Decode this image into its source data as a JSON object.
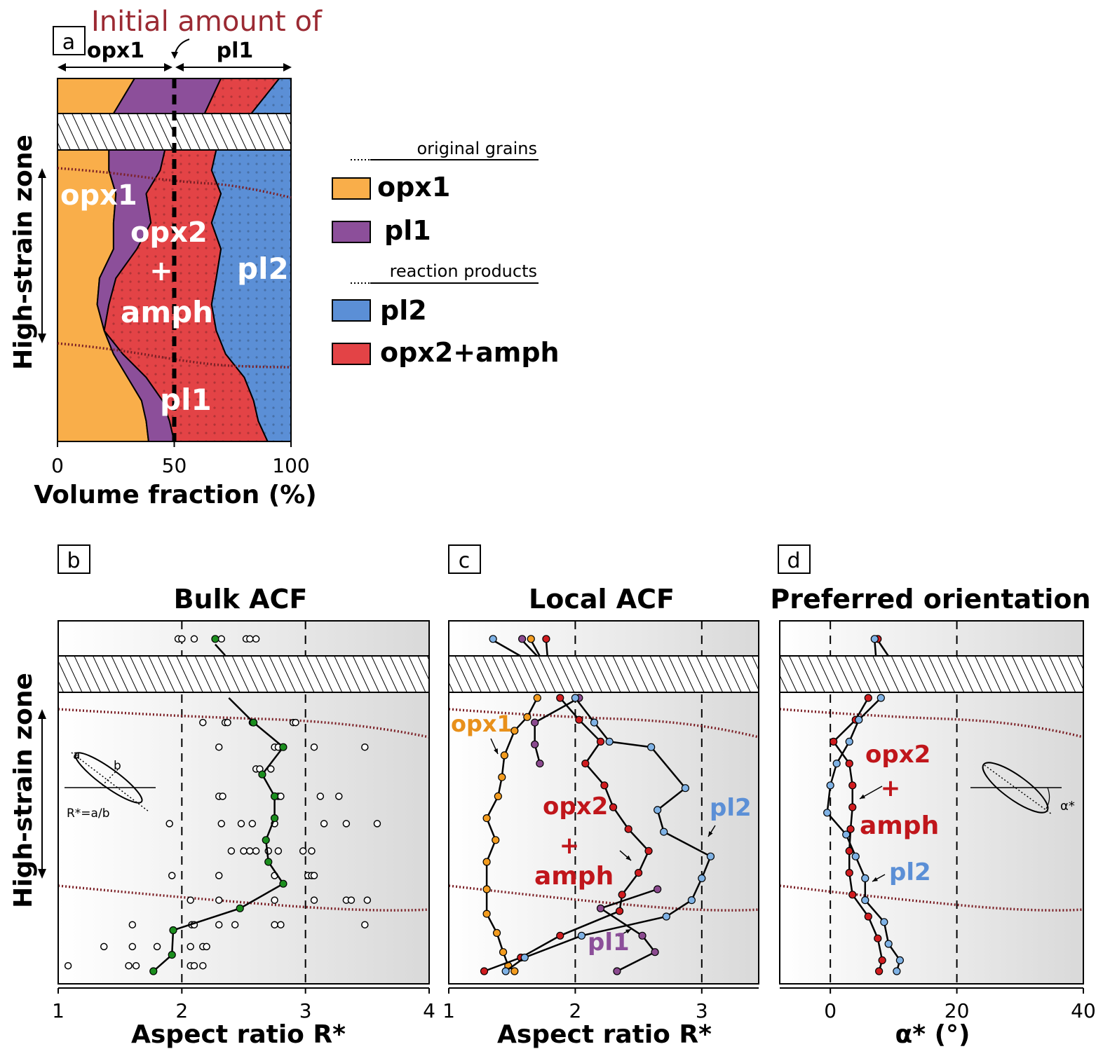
{
  "chart_data": [
    {
      "panel": "a",
      "type": "area",
      "title": "Initial amount of",
      "top_labels": [
        "opx1",
        "pl1"
      ],
      "xlabel": "Volume fraction (%)",
      "ylabel": "High-strain zone",
      "xlim": [
        0,
        100
      ],
      "xticks": [
        "0",
        "50",
        "100"
      ],
      "initial_marker_x": 50,
      "area_labels": [
        "opx1",
        "opx2",
        "+",
        "amph",
        "pl2",
        "pl1"
      ],
      "depth": [
        0.0,
        0.07,
        0.15,
        0.25,
        0.34,
        0.44,
        0.53,
        0.62,
        0.7,
        0.78,
        0.86,
        0.93,
        1.0
      ],
      "boundaries": [
        {
          "name": "opx1|pl1",
          "values": [
            22,
            22,
            25,
            24,
            24,
            18,
            17,
            20,
            24,
            30,
            36,
            38,
            39
          ]
        },
        {
          "name": "pl1|opx2+amph",
          "values": [
            46,
            44,
            38,
            40,
            34,
            25,
            22,
            20,
            28,
            38,
            45,
            48,
            50
          ]
        },
        {
          "name": "opx2+amph|pl2",
          "values": [
            68,
            66,
            70,
            66,
            70,
            68,
            66,
            68,
            72,
            80,
            84,
            86,
            90
          ]
        }
      ],
      "above_break": {
        "boundaries": [
          {
            "name": "opx1|pl1",
            "values": [
              33,
              24
            ]
          },
          {
            "name": "pl1|opx2+amph",
            "values": [
              70,
              63
            ]
          },
          {
            "name": "opx2+amph|pl2",
            "values": [
              95,
              83
            ]
          }
        ]
      }
    },
    {
      "panel": "b",
      "type": "scatter",
      "title": "Bulk ACF",
      "xlabel": "Aspect ratio R*",
      "ylabel": "High-strain zone",
      "xlim": [
        1,
        4
      ],
      "xticks": [
        "1",
        "2",
        "3",
        "4"
      ],
      "inset_labels": [
        "a",
        "b",
        "R*=a/b"
      ],
      "top_scatter": [
        1.97,
        2.0,
        2.1,
        2.32,
        2.52,
        2.55,
        2.6
      ],
      "top_mean": [
        [
          2.27,
          0.5
        ],
        [
          2.35,
          1.0
        ]
      ],
      "mean_depth": [
        0.0,
        0.09,
        0.18,
        0.28,
        0.36,
        0.44,
        0.52,
        0.6,
        0.68,
        0.77,
        0.85,
        0.94,
        1.0
      ],
      "mean_values": [
        2.38,
        2.58,
        2.82,
        2.65,
        2.75,
        2.75,
        2.68,
        2.7,
        2.82,
        2.47,
        1.93,
        1.92,
        1.77
      ],
      "scatter_rows": [
        {
          "d": 0.09,
          "x": [
            2.17,
            2.35,
            2.37,
            2.57,
            2.9,
            2.92
          ]
        },
        {
          "d": 0.18,
          "x": [
            2.3,
            2.75,
            2.78,
            2.82,
            3.07,
            3.48
          ]
        },
        {
          "d": 0.26,
          "x": [
            2.6,
            2.63,
            2.72
          ]
        },
        {
          "d": 0.36,
          "x": [
            2.3,
            2.33,
            2.78,
            2.8,
            3.12,
            3.27
          ]
        },
        {
          "d": 0.46,
          "x": [
            1.9,
            2.32,
            2.48,
            2.57,
            2.75,
            3.15,
            3.33,
            3.58
          ]
        },
        {
          "d": 0.56,
          "x": [
            2.4,
            2.5,
            2.55,
            2.6,
            2.7,
            2.78,
            2.98,
            3.05
          ]
        },
        {
          "d": 0.65,
          "x": [
            1.92,
            2.3,
            2.75,
            3.02,
            3.05,
            3.07
          ]
        },
        {
          "d": 0.74,
          "x": [
            2.07,
            2.3,
            2.75,
            3.07,
            3.33,
            3.37,
            3.5
          ]
        },
        {
          "d": 0.83,
          "x": [
            1.6,
            2.08,
            2.1,
            2.3,
            2.43,
            2.75,
            2.8,
            3.48
          ]
        },
        {
          "d": 0.91,
          "x": [
            1.37,
            1.6,
            1.8,
            2.07,
            2.17,
            2.2
          ]
        },
        {
          "d": 0.98,
          "x": [
            1.08,
            1.57,
            1.63,
            2.07,
            2.1,
            2.17
          ]
        }
      ]
    },
    {
      "panel": "c",
      "type": "line",
      "title": "Local ACF",
      "xlabel": "Aspect ratio R*",
      "ylabel": "",
      "xlim": [
        1,
        3.45
      ],
      "xticks": [
        "1",
        "2",
        "3"
      ],
      "series_labels": [
        "opx1",
        "opx2",
        "+",
        "amph",
        "pl2",
        "pl1"
      ],
      "series": [
        {
          "name": "opx1",
          "color": "#f39c1f",
          "top": [
            [
              1.65,
              0.3
            ],
            [
              1.72,
              1.0
            ]
          ],
          "points": [
            [
              1.7,
              0.0
            ],
            [
              1.62,
              0.07
            ],
            [
              1.52,
              0.12
            ],
            [
              1.44,
              0.21
            ],
            [
              1.42,
              0.29
            ],
            [
              1.39,
              0.36
            ],
            [
              1.3,
              0.44
            ],
            [
              1.37,
              0.52
            ],
            [
              1.3,
              0.6
            ],
            [
              1.3,
              0.7
            ],
            [
              1.3,
              0.79
            ],
            [
              1.38,
              0.86
            ],
            [
              1.43,
              0.93
            ],
            [
              1.47,
              0.98
            ],
            [
              1.52,
              1.0
            ]
          ]
        },
        {
          "name": "pl1",
          "color": "#8b4a8f",
          "top": [
            [
              1.58,
              0.3
            ],
            [
              1.7,
              1.0
            ]
          ],
          "points": [
            [
              2.03,
              0.0
            ],
            [
              1.68,
              0.09
            ],
            [
              1.68,
              0.17
            ],
            [
              1.72,
              0.24
            ]
          ],
          "points2": [
            [
              2.65,
              0.7
            ],
            [
              2.2,
              0.77
            ],
            [
              2.53,
              0.87
            ],
            [
              2.63,
              0.93
            ],
            [
              2.33,
              1.0
            ]
          ]
        },
        {
          "name": "opx2+amph",
          "color": "#d01c1f",
          "top": [
            [
              1.77,
              0.3
            ],
            [
              1.78,
              1.0
            ]
          ],
          "points": [
            [
              1.88,
              0.0
            ],
            [
              2.03,
              0.08
            ],
            [
              2.2,
              0.16
            ],
            [
              2.08,
              0.24
            ],
            [
              2.23,
              0.32
            ],
            [
              2.3,
              0.4
            ],
            [
              2.42,
              0.48
            ],
            [
              2.58,
              0.56
            ],
            [
              2.5,
              0.64
            ],
            [
              2.37,
              0.72
            ],
            [
              2.35,
              0.78
            ],
            [
              1.88,
              0.87
            ],
            [
              1.57,
              0.95
            ],
            [
              1.28,
              1.0
            ]
          ]
        },
        {
          "name": "pl2",
          "color": "#7fb2e5",
          "top": [
            [
              1.35,
              0.3
            ],
            [
              1.57,
              1.0
            ]
          ],
          "points": [
            [
              2.0,
              0.0
            ],
            [
              2.15,
              0.09
            ],
            [
              2.27,
              0.16
            ],
            [
              2.6,
              0.18
            ],
            [
              2.87,
              0.33
            ],
            [
              2.65,
              0.41
            ],
            [
              2.7,
              0.49
            ],
            [
              3.07,
              0.58
            ],
            [
              3.0,
              0.66
            ],
            [
              2.92,
              0.74
            ],
            [
              2.72,
              0.8
            ],
            [
              2.05,
              0.87
            ],
            [
              1.6,
              0.95
            ],
            [
              1.45,
              1.0
            ]
          ]
        }
      ]
    },
    {
      "panel": "d",
      "type": "line",
      "title": "Preferred orientation",
      "xlabel": "α* (°)",
      "ylabel": "",
      "xlim": [
        -8,
        40
      ],
      "xticks": [
        "0",
        "20",
        "40"
      ],
      "series_labels": [
        "opx2",
        "+",
        "amph",
        "pl2"
      ],
      "inset_label": "α*",
      "series": [
        {
          "name": "opx2+amph",
          "color": "#d01c1f",
          "top": [
            [
              7.5,
              0.3
            ],
            [
              9.2,
              1.0
            ]
          ],
          "points": [
            [
              6.0,
              0.0
            ],
            [
              4.0,
              0.08
            ],
            [
              0.5,
              0.16
            ],
            [
              3.0,
              0.24
            ],
            [
              3.5,
              0.32
            ],
            [
              3.5,
              0.4
            ],
            [
              3.2,
              0.48
            ],
            [
              3.0,
              0.56
            ],
            [
              3.0,
              0.64
            ],
            [
              3.5,
              0.72
            ],
            [
              6.0,
              0.8
            ],
            [
              7.5,
              0.88
            ],
            [
              8.2,
              0.96
            ],
            [
              7.7,
              1.0
            ]
          ]
        },
        {
          "name": "pl2",
          "color": "#7fb2e5",
          "top": [
            [
              7.0,
              0.3
            ],
            [
              7.2,
              1.0
            ]
          ],
          "points": [
            [
              8.0,
              0.0
            ],
            [
              4.5,
              0.08
            ],
            [
              3.0,
              0.16
            ],
            [
              1.0,
              0.24
            ],
            [
              0.0,
              0.32
            ],
            [
              -0.5,
              0.42
            ],
            [
              2.5,
              0.5
            ],
            [
              4.0,
              0.58
            ],
            [
              5.5,
              0.66
            ],
            [
              5.5,
              0.74
            ],
            [
              8.5,
              0.82
            ],
            [
              9.2,
              0.9
            ],
            [
              11.0,
              0.96
            ],
            [
              10.5,
              1.0
            ]
          ]
        }
      ]
    }
  ],
  "legend": {
    "header_original": "original grains",
    "header_reaction": "reaction products",
    "items": [
      {
        "label": "opx1",
        "color": "#f9ae4a"
      },
      {
        "label": "pl1",
        "color": "#8c4f9a"
      },
      {
        "label": "pl2",
        "color": "#5b8fd6"
      },
      {
        "label": "opx2+amph",
        "color": "#e34346"
      }
    ]
  },
  "panel_letters": [
    "a",
    "b",
    "c",
    "d"
  ],
  "colors": {
    "opx1": "#f9ae4a",
    "pl1": "#8c4f9a",
    "pl2": "#5b8fd6",
    "opx2_amph": "#e34346",
    "boundary_dotted": "#7b1f25",
    "title_red": "#9b2a33",
    "mean_green": "#1b8e1e"
  }
}
